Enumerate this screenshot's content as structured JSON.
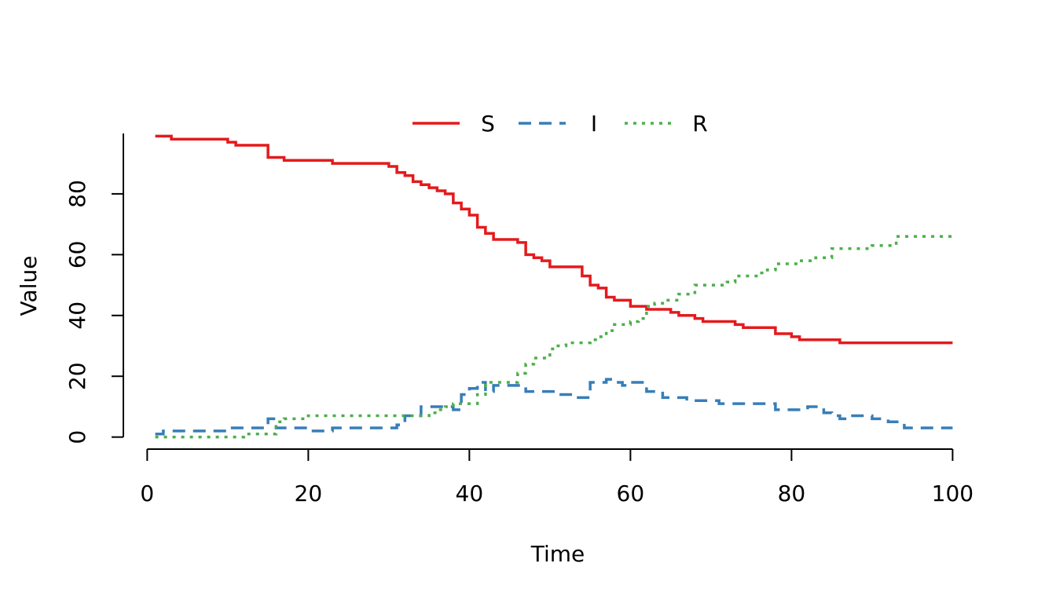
{
  "chart_data": {
    "type": "line",
    "step": true,
    "x_label": "Time",
    "y_label": "Value",
    "x": [
      1,
      2,
      3,
      4,
      5,
      6,
      7,
      8,
      9,
      10,
      11,
      12,
      13,
      14,
      15,
      16,
      17,
      18,
      19,
      20,
      21,
      22,
      23,
      24,
      25,
      26,
      27,
      28,
      29,
      30,
      31,
      32,
      33,
      34,
      35,
      36,
      37,
      38,
      39,
      40,
      41,
      42,
      43,
      44,
      45,
      46,
      47,
      48,
      49,
      50,
      51,
      52,
      53,
      54,
      55,
      56,
      57,
      58,
      59,
      60,
      61,
      62,
      63,
      64,
      65,
      66,
      67,
      68,
      69,
      70,
      71,
      72,
      73,
      74,
      75,
      76,
      77,
      78,
      79,
      80,
      81,
      82,
      83,
      84,
      85,
      86,
      87,
      88,
      89,
      90,
      91,
      92,
      93,
      94,
      95,
      96,
      97,
      98,
      99,
      100
    ],
    "series": [
      {
        "name": "S",
        "color": "#e41a1c",
        "dash": "solid",
        "values": [
          99,
          99,
          98,
          98,
          98,
          98,
          98,
          98,
          98,
          97,
          96,
          96,
          96,
          96,
          92,
          92,
          91,
          91,
          91,
          91,
          91,
          91,
          90,
          90,
          90,
          90,
          90,
          90,
          90,
          89,
          87,
          86,
          84,
          83,
          82,
          81,
          80,
          77,
          75,
          73,
          69,
          67,
          65,
          65,
          65,
          64,
          60,
          59,
          58,
          56,
          56,
          56,
          56,
          53,
          50,
          49,
          46,
          45,
          45,
          43,
          43,
          42,
          42,
          42,
          41,
          40,
          40,
          39,
          38,
          38,
          38,
          38,
          37,
          36,
          36,
          36,
          36,
          34,
          34,
          33,
          32,
          32,
          32,
          32,
          32,
          31,
          31,
          31,
          31,
          31,
          31,
          31,
          31,
          31,
          31,
          31,
          31,
          31,
          31,
          31
        ]
      },
      {
        "name": "I",
        "color": "#377eb8",
        "dash": "dashed",
        "values": [
          1,
          2,
          2,
          2,
          2,
          2,
          2,
          2,
          2,
          3,
          3,
          3,
          3,
          3,
          6,
          3,
          3,
          3,
          3,
          2,
          2,
          2,
          3,
          3,
          3,
          3,
          3,
          3,
          3,
          3,
          4,
          7,
          7,
          10,
          10,
          10,
          10,
          9,
          14,
          16,
          18,
          15,
          17,
          17,
          17,
          17,
          15,
          15,
          15,
          15,
          14,
          14,
          13,
          13,
          18,
          18,
          19,
          18,
          17,
          18,
          18,
          15,
          15,
          13,
          13,
          13,
          12,
          12,
          12,
          12,
          11,
          11,
          11,
          11,
          11,
          11,
          11,
          9,
          9,
          9,
          9,
          10,
          10,
          8,
          7,
          6,
          7,
          7,
          7,
          6,
          6,
          5,
          5,
          3,
          3,
          3,
          3,
          3,
          3,
          3
        ]
      },
      {
        "name": "R",
        "color": "#4daf4a",
        "dash": "dotted",
        "values": [
          0,
          0,
          0,
          0,
          0,
          0,
          0,
          0,
          0,
          0,
          0,
          1,
          1,
          1,
          1,
          5,
          6,
          6,
          6,
          7,
          7,
          7,
          7,
          7,
          7,
          7,
          7,
          7,
          7,
          7,
          7,
          7,
          7,
          7,
          8,
          9,
          10,
          11,
          11,
          11,
          14,
          18,
          18,
          18,
          18,
          21,
          24,
          26,
          26,
          29,
          30,
          31,
          31,
          31,
          32,
          33,
          35,
          37,
          37,
          38,
          39,
          43,
          44,
          45,
          45,
          47,
          47,
          50,
          50,
          50,
          50,
          51,
          53,
          53,
          53,
          54,
          55,
          57,
          57,
          57,
          58,
          58,
          59,
          59,
          62,
          62,
          62,
          62,
          62,
          63,
          63,
          63,
          66,
          66,
          66,
          66,
          66,
          66,
          66,
          66
        ]
      }
    ],
    "xlim": [
      -2.96,
      103.96
    ],
    "ylim": [
      -3.96,
      102.96
    ],
    "xticks": [
      0,
      20,
      40,
      60,
      80,
      100
    ],
    "yticks": [
      0,
      20,
      40,
      60,
      80
    ],
    "legend": "top"
  }
}
